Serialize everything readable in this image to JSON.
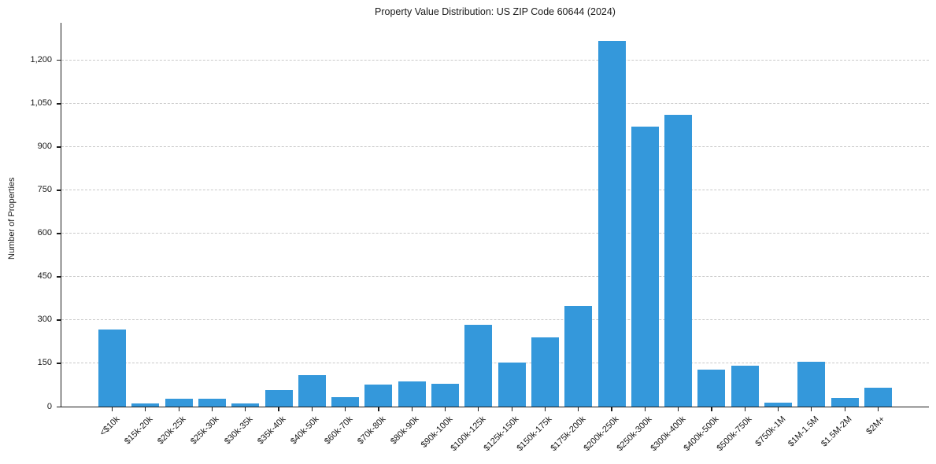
{
  "title": "Property Value Distribution: US ZIP Code 60644 (2024)",
  "chart_data": {
    "type": "bar",
    "title": "Property Value Distribution: US ZIP Code 60644 (2024)",
    "xlabel": "",
    "ylabel": "Number of Properties",
    "categories": [
      "<$10k",
      "$15k-20k",
      "$20k-25k",
      "$25k-30k",
      "$30k-35k",
      "$35k-40k",
      "$40k-50k",
      "$60k-70k",
      "$70k-80k",
      "$80k-90k",
      "$90k-100k",
      "$100k-125k",
      "$125k-150k",
      "$150k-175k",
      "$175k-200k",
      "$200k-250k",
      "$250k-300k",
      "$300k-400k",
      "$400k-500k",
      "$500k-750k",
      "$750k-1M",
      "$1M-1.5M",
      "$1.5M-2M",
      "$2M+"
    ],
    "values": [
      266,
      12,
      28,
      26,
      11,
      56,
      108,
      34,
      77,
      86,
      79,
      283,
      152,
      241,
      348,
      1268,
      971,
      1012,
      128,
      143,
      13,
      155,
      29,
      66
    ],
    "ylim": [
      0,
      1330
    ],
    "yticks": [
      0,
      150,
      300,
      450,
      600,
      750,
      900,
      1050,
      1200
    ],
    "ytick_labels": [
      "0",
      "150",
      "300",
      "450",
      "600",
      "750",
      "900",
      "1,050",
      "1,200"
    ],
    "grid": "horizontal-dashed",
    "legend": "none",
    "bar_color": "#3498db",
    "axis_color": "#1a1a1a",
    "grid_color": "#c9c9c9",
    "background": "#ffffff"
  }
}
